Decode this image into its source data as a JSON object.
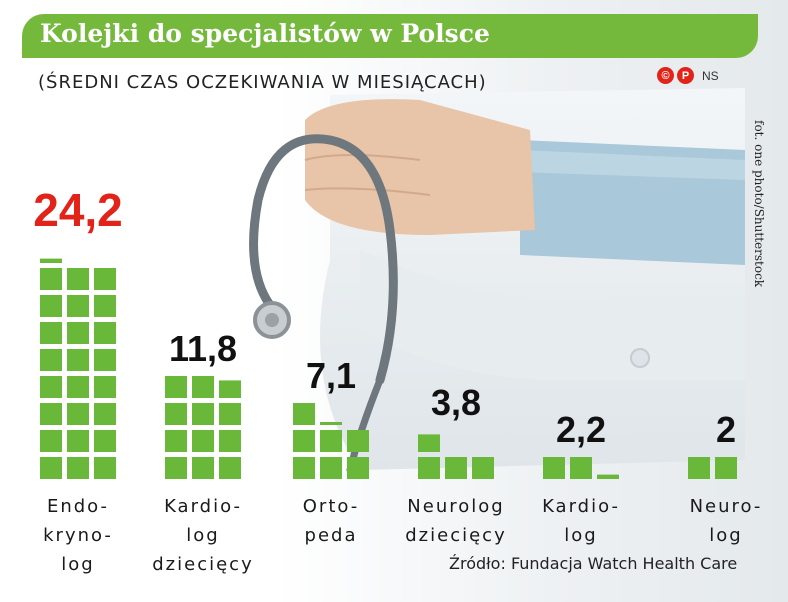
{
  "header": {
    "title": "Kolejki do specjalistów w Polsce",
    "subtitle": "(ŚREDNI CZAS OCZEKIWANIA W MIESIĄCACH)",
    "logo_marks": [
      "©",
      "P"
    ],
    "logo_suffix": "NS",
    "photo_credit": "fot. one photo/Shutterstock"
  },
  "footer": {
    "source": "Źródło: Fundacja Watch Health Care"
  },
  "colors": {
    "accent": "#74b93c",
    "bar": "#6ab839",
    "highlight_value": "#e2231a",
    "text": "#111111"
  },
  "chart_data": {
    "type": "bar",
    "title": "Kolejki do specjalistów w Polsce",
    "subtitle": "(ŚREDNI CZAS OCZEKIWANIA W MIESIĄCACH)",
    "unit": "miesiące",
    "categories": [
      [
        "Endo-",
        "kryno-",
        "log"
      ],
      [
        "Kardio-",
        "log",
        "dziecięcy"
      ],
      [
        "Orto-",
        "peda"
      ],
      [
        "Neurolog",
        "dziecięcy"
      ],
      [
        "Kardio-",
        "log"
      ],
      [
        "Neuro-",
        "log"
      ]
    ],
    "values": [
      24.2,
      11.8,
      7.1,
      3.8,
      2.2,
      2
    ],
    "value_labels": [
      "24,2",
      "11,8",
      "7,1",
      "3,8",
      "2,2",
      "2"
    ],
    "highlight_index": 0,
    "encoding": "pictogram: one square = one month",
    "grid": false,
    "legend": "none"
  }
}
